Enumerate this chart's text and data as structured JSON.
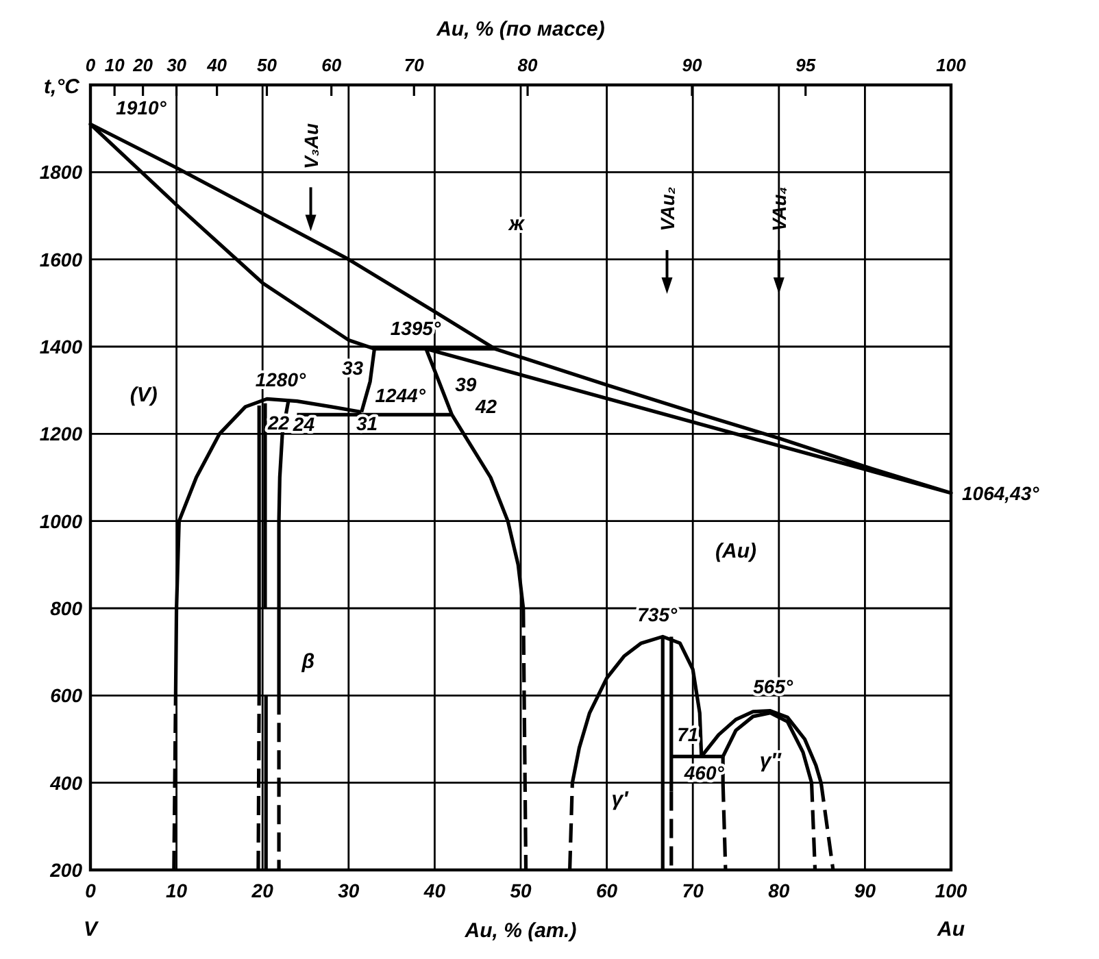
{
  "chart_data": {
    "type": "line",
    "xlabel": "Au, % (ат.)",
    "x2label": "Au, % (по массе)",
    "ylabel": "t,°C",
    "xlim": [
      0,
      100
    ],
    "ylim": [
      200,
      2000
    ],
    "xticks": [
      0,
      10,
      20,
      30,
      40,
      50,
      60,
      70,
      80,
      90,
      100
    ],
    "yticks": [
      200,
      400,
      600,
      800,
      1000,
      1200,
      1400,
      1600,
      1800
    ],
    "grid": true,
    "series": [
      {
        "color": "#000000",
        "line_style": "solid",
        "x": [
          47,
          33,
          30,
          20,
          10,
          0,
          10,
          20,
          30,
          40,
          47,
          60,
          70,
          80,
          90,
          100,
          39
        ],
        "values": [
          1395,
          1395,
          1415,
          1546,
          1725,
          1910,
          1810,
          1705,
          1600,
          1480,
          1395,
          1312,
          1250,
          1190,
          1125,
          1064.43,
          1395
        ]
      },
      {
        "color": "#000000",
        "line_style": "solid",
        "x": [
          33,
          32.5,
          31.5
        ],
        "values": [
          1395,
          1320,
          1250
        ]
      },
      {
        "color": "#000000",
        "line_style": "solid",
        "x": [
          24,
          42
        ],
        "values": [
          1244,
          1244
        ]
      },
      {
        "color": "#000000",
        "line_style": "solid",
        "x": [
          39,
          40.5,
          42,
          44,
          46.5,
          48.5,
          49.7,
          50.3
        ],
        "values": [
          1395,
          1320,
          1244,
          1180,
          1100,
          1000,
          900,
          800
        ]
      },
      {
        "color": "#000000",
        "line_style": "dashed",
        "x": [
          50.3,
          50.6
        ],
        "values": [
          800,
          200
        ]
      },
      {
        "color": "#000000",
        "line_style": "solid",
        "x": [
          9.9,
          10,
          10.3,
          12.3,
          15,
          18,
          20.5,
          24,
          28,
          31.5
        ],
        "values": [
          600,
          800,
          1000,
          1100,
          1200,
          1262,
          1280,
          1275,
          1262,
          1250
        ]
      },
      {
        "color": "#000000",
        "line_style": "dashed",
        "x": [
          9.7,
          9.9
        ],
        "values": [
          200,
          600
        ]
      },
      {
        "color": "#000000",
        "line_style": "solid",
        "x": [
          19.6,
          19.6
        ],
        "values": [
          1265,
          600
        ]
      },
      {
        "color": "#000000",
        "line_style": "dashed",
        "x": [
          19.5,
          19.6
        ],
        "values": [
          200,
          600
        ]
      },
      {
        "color": "#000000",
        "line_style": "solid",
        "x": [
          20.3,
          20.3
        ],
        "values": [
          1270,
          800
        ]
      },
      {
        "color": "#000000",
        "line_style": "solid",
        "x": [
          20.4,
          20.4
        ],
        "values": [
          600,
          200
        ]
      },
      {
        "color": "#000000",
        "line_style": "solid",
        "x": [
          23,
          22.3,
          22,
          21.9,
          21.9
        ],
        "values": [
          1275,
          1200,
          1100,
          1000,
          600
        ]
      },
      {
        "color": "#000000",
        "line_style": "dashed",
        "x": [
          21.9,
          21.9
        ],
        "values": [
          600,
          200
        ]
      },
      {
        "color": "#000000",
        "line_style": "solid",
        "x": [
          56,
          56.8,
          58,
          60,
          62,
          64,
          66.5,
          68.5,
          70,
          70.8,
          71
        ],
        "values": [
          400,
          480,
          560,
          640,
          690,
          720,
          735,
          720,
          660,
          560,
          460
        ]
      },
      {
        "color": "#000000",
        "line_style": "dashed",
        "x": [
          55.7,
          56
        ],
        "values": [
          200,
          400
        ]
      },
      {
        "color": "#000000",
        "line_style": "solid",
        "x": [
          66.5,
          66.5
        ],
        "values": [
          735,
          200
        ]
      },
      {
        "color": "#000000",
        "line_style": "solid",
        "x": [
          67.5,
          67.5
        ],
        "values": [
          735,
          380
        ]
      },
      {
        "color": "#000000",
        "line_style": "dashed",
        "x": [
          67.5,
          67.5
        ],
        "values": [
          380,
          200
        ]
      },
      {
        "color": "#000000",
        "line_style": "solid",
        "x": [
          67.5,
          73.5
        ],
        "values": [
          460,
          460
        ]
      },
      {
        "color": "#000000",
        "line_style": "solid",
        "x": [
          71,
          73,
          75,
          77,
          79,
          81,
          83,
          84.3,
          84.9
        ],
        "values": [
          460,
          510,
          545,
          563,
          565,
          550,
          500,
          440,
          400
        ]
      },
      {
        "color": "#000000",
        "line_style": "dashed",
        "x": [
          84.9,
          86.3
        ],
        "values": [
          400,
          200
        ]
      },
      {
        "color": "#000000",
        "line_style": "solid",
        "x": [
          73.5,
          75,
          77,
          79,
          81,
          82.8,
          83.8
        ],
        "values": [
          460,
          520,
          552,
          560,
          540,
          470,
          400
        ]
      },
      {
        "color": "#000000",
        "line_style": "solid",
        "x": [
          73.5,
          73.5
        ],
        "values": [
          460,
          400
        ]
      },
      {
        "color": "#000000",
        "line_style": "dashed",
        "x": [
          73.5,
          73.8
        ],
        "values": [
          400,
          200
        ]
      },
      {
        "color": "#000000",
        "line_style": "dashed",
        "x": [
          83.8,
          84.2
        ],
        "values": [
          400,
          200
        ]
      }
    ],
    "annotations": [
      {
        "text": "1910°",
        "x": 0,
        "y": 1910
      },
      {
        "text": "1395°",
        "x": 40,
        "y": 1395
      },
      {
        "text": "33",
        "x": 33,
        "y": 1395
      },
      {
        "text": "1280°",
        "x": 20.5,
        "y": 1280
      },
      {
        "text": "1244°",
        "x": 36,
        "y": 1244
      },
      {
        "text": "39",
        "x": 39,
        "y": 1395
      },
      {
        "text": "42",
        "x": 42,
        "y": 1244
      },
      {
        "text": "22",
        "x": 22.5,
        "y": 1244
      },
      {
        "text": "24",
        "x": 24,
        "y": 1244
      },
      {
        "text": "31",
        "x": 31.5,
        "y": 1250
      },
      {
        "text": "735°",
        "x": 66.5,
        "y": 735
      },
      {
        "text": "565°",
        "x": 79,
        "y": 565
      },
      {
        "text": "71",
        "x": 71,
        "y": 460
      },
      {
        "text": "460°",
        "x": 71,
        "y": 460
      },
      {
        "text": "1064,43°",
        "x": 100,
        "y": 1064.43
      },
      "ж",
      "(V)",
      "(Au)",
      "β",
      "γ′",
      "γ″",
      "V",
      "Au",
      "V₃Au",
      "VAu₂",
      "VAu₄",
      "0",
      "10",
      "20",
      "30",
      "40",
      "50",
      "60",
      "70",
      "80",
      "90",
      "95",
      "100"
    ]
  }
}
